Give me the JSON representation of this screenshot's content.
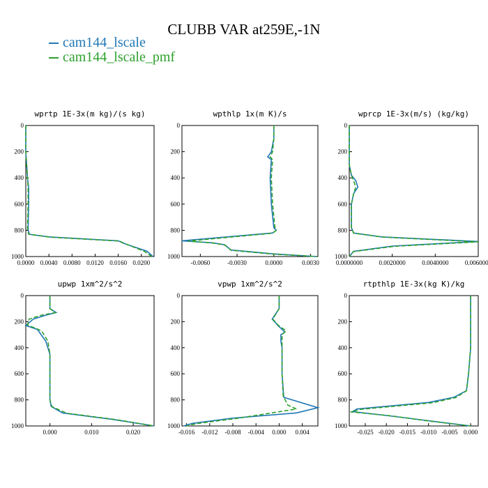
{
  "title": "CLUBB VAR at259E,-1N",
  "legend": [
    {
      "label": "cam144_lscale",
      "color": "#1f77b4"
    },
    {
      "label": "cam144_lscale_pmf",
      "color": "#2ca02c"
    }
  ],
  "chart_data": [
    {
      "type": "line",
      "title": "wprtp  1E-3x(m kg)/(s kg)",
      "xlim": [
        0.0,
        0.0222
      ],
      "xticks": [
        0.0,
        0.004,
        0.008,
        0.012,
        0.016,
        0.02
      ],
      "xticklabels": [
        "0.0000",
        "0.0040",
        "0.0080",
        "0.0120",
        "0.0160",
        "0.0200"
      ],
      "ylim": [
        1000,
        0
      ],
      "yticks": [
        0,
        200,
        400,
        600,
        800,
        1000
      ],
      "series": [
        {
          "name": "cam144_lscale",
          "color": "#1f77b4",
          "x": [
            0,
            0,
            0.0003,
            0.0005,
            0.0005,
            0.0004,
            0.0006,
            0.004,
            0.016,
            0.017,
            0.021,
            0.022
          ],
          "y": [
            0,
            200,
            400,
            480,
            600,
            790,
            830,
            850,
            880,
            900,
            960,
            1000
          ]
        },
        {
          "name": "cam144_lscale_pmf",
          "color": "#2ca02c",
          "x": [
            0,
            0,
            0.0003,
            0.0004,
            0.0004,
            0.0003,
            0.0005,
            0.0042,
            0.0162,
            0.0172,
            0.0205,
            0.0218
          ],
          "y": [
            0,
            200,
            400,
            480,
            600,
            790,
            830,
            852,
            882,
            902,
            960,
            1000
          ]
        }
      ]
    },
    {
      "type": "line",
      "title": "wpthlp  1x(m K)/s",
      "xlim": [
        -0.0075,
        0.0036
      ],
      "xticks": [
        -0.006,
        -0.003,
        0.0,
        0.003
      ],
      "xticklabels": [
        "-0.0060",
        "-0.0030",
        "0.0000",
        "0.0030"
      ],
      "ylim": [
        1000,
        0
      ],
      "yticks": [
        0,
        200,
        400,
        600,
        800,
        1000
      ],
      "series": [
        {
          "name": "cam144_lscale",
          "color": "#1f77b4",
          "x": [
            0,
            0,
            -0.0002,
            -0.0005,
            -0.0002,
            -0.0003,
            -0.0002,
            0.0,
            0.0002,
            -0.0001,
            -0.0075,
            -0.005,
            -0.004,
            -0.0035,
            0.0,
            0.0035
          ],
          "y": [
            0,
            100,
            200,
            240,
            260,
            400,
            600,
            780,
            800,
            820,
            880,
            895,
            910,
            950,
            980,
            1000
          ]
        },
        {
          "name": "cam144_lscale_pmf",
          "color": "#2ca02c",
          "x": [
            0,
            0,
            -0.0001,
            -0.0003,
            -0.0001,
            -0.0002,
            -0.0001,
            0.0001,
            0.0002,
            -0.0001,
            -0.007,
            -0.005,
            -0.004,
            -0.0035,
            0.0,
            0.0035
          ],
          "y": [
            0,
            100,
            200,
            240,
            260,
            400,
            600,
            780,
            800,
            822,
            882,
            897,
            912,
            952,
            982,
            1000
          ]
        }
      ]
    },
    {
      "type": "line",
      "title": "wprcp  1E-3x(m/s) (kg/kg)",
      "xlim": [
        0.0,
        0.006
      ],
      "xticks": [
        0.0,
        0.002,
        0.004,
        0.006
      ],
      "xticklabels": [
        "0.0000000",
        "0.0020000",
        "0.0040000",
        "0.0060000"
      ],
      "ylim": [
        1000,
        0
      ],
      "yticks": [
        0,
        200,
        400,
        600,
        800,
        1000
      ],
      "series": [
        {
          "name": "cam144_lscale",
          "color": "#1f77b4",
          "x": [
            0,
            0,
            0.0001,
            0.0003,
            0.0004,
            0.0002,
            0.0001,
            0.0001,
            0.0002,
            0.0015,
            0.006,
            0.002,
            0.0002,
            0.0
          ],
          "y": [
            0,
            300,
            380,
            420,
            470,
            520,
            600,
            780,
            820,
            850,
            885,
            920,
            960,
            1000
          ]
        },
        {
          "name": "cam144_lscale_pmf",
          "color": "#2ca02c",
          "x": [
            0,
            0,
            0.0001,
            0.0002,
            0.0003,
            0.0002,
            0.0001,
            0.0001,
            0.0002,
            0.0016,
            0.006,
            0.0021,
            0.0002,
            0.0
          ],
          "y": [
            0,
            300,
            380,
            420,
            470,
            520,
            600,
            780,
            822,
            852,
            888,
            922,
            962,
            1000
          ]
        }
      ]
    },
    {
      "type": "line",
      "title": "upwp  1xm^2/s^2",
      "xlim": [
        -0.0058,
        0.025
      ],
      "xticks": [
        0.0,
        0.01,
        0.02
      ],
      "xticklabels": [
        "0.000",
        "0.010",
        "0.020"
      ],
      "ylim": [
        1000,
        0
      ],
      "yticks": [
        0,
        200,
        400,
        600,
        800,
        1000
      ],
      "series": [
        {
          "name": "cam144_lscale",
          "color": "#1f77b4",
          "x": [
            0,
            0,
            0.0015,
            -0.001,
            -0.004,
            -0.0058,
            -0.003,
            -0.001,
            0,
            0,
            0,
            0.0003,
            0.003,
            0.015,
            0.025
          ],
          "y": [
            0,
            100,
            130,
            150,
            180,
            230,
            260,
            350,
            450,
            600,
            800,
            850,
            900,
            950,
            1000
          ]
        },
        {
          "name": "cam144_lscale_pmf",
          "color": "#2ca02c",
          "x": [
            0,
            0,
            0.0013,
            -0.002,
            -0.005,
            -0.0054,
            -0.002,
            -0.0005,
            0,
            0,
            0,
            0.0005,
            0.004,
            0.016,
            0.025
          ],
          "y": [
            0,
            100,
            130,
            150,
            180,
            225,
            270,
            350,
            450,
            600,
            800,
            852,
            902,
            952,
            1000
          ]
        }
      ]
    },
    {
      "type": "line",
      "title": "vpwp  1xm^2/s^2",
      "xlim": [
        -0.0168,
        0.0067
      ],
      "xticks": [
        -0.016,
        -0.012,
        -0.008,
        -0.004,
        0.0,
        0.004
      ],
      "xticklabels": [
        "-0.016",
        "-0.012",
        "-0.008",
        "-0.004",
        "0.000",
        "0.004"
      ],
      "ylim": [
        1000,
        0
      ],
      "yticks": [
        0,
        200,
        400,
        600,
        800,
        1000
      ],
      "series": [
        {
          "name": "cam144_lscale",
          "color": "#1f77b4",
          "x": [
            0,
            0,
            -0.0012,
            -0.0002,
            0.001,
            0.0003,
            0.0003,
            0.0005,
            0.0005,
            0.0008,
            0.0067,
            0.003,
            -0.008,
            -0.015,
            -0.0165
          ],
          "y": [
            0,
            100,
            180,
            230,
            280,
            300,
            350,
            400,
            600,
            780,
            860,
            900,
            940,
            980,
            1000
          ]
        },
        {
          "name": "cam144_lscale_pmf",
          "color": "#2ca02c",
          "x": [
            0,
            0,
            -0.0011,
            -0.0001,
            0.0012,
            0.0005,
            0.0005,
            0.0005,
            0.0005,
            0.0007,
            0.0015,
            0.003,
            -0.007,
            -0.014,
            -0.016
          ],
          "y": [
            0,
            100,
            180,
            230,
            270,
            300,
            350,
            400,
            600,
            770,
            840,
            870,
            940,
            980,
            1000
          ]
        }
      ]
    },
    {
      "type": "line",
      "title": "rtpthlp  1E-3x(kg K)/kg",
      "xlim": [
        -0.0288,
        0.0018
      ],
      "xticks": [
        -0.025,
        -0.02,
        -0.015,
        -0.01,
        -0.005,
        0.0
      ],
      "xticklabels": [
        "-0.025",
        "-0.020",
        "-0.015",
        "-0.010",
        "-0.005",
        "0.000"
      ],
      "ylim": [
        1000,
        0
      ],
      "yticks": [
        0,
        200,
        400,
        600,
        800,
        1000
      ],
      "series": [
        {
          "name": "cam144_lscale",
          "color": "#1f77b4",
          "x": [
            0,
            0,
            0,
            -0.0005,
            -0.001,
            -0.004,
            -0.01,
            -0.027,
            -0.028,
            -0.02,
            -0.01,
            0.0
          ],
          "y": [
            0,
            200,
            400,
            600,
            730,
            780,
            820,
            870,
            890,
            920,
            960,
            1000
          ]
        },
        {
          "name": "cam144_lscale_pmf",
          "color": "#2ca02c",
          "x": [
            0,
            0,
            0,
            -0.0005,
            -0.001,
            -0.0035,
            -0.009,
            -0.026,
            -0.0285,
            -0.019,
            -0.01,
            0.0
          ],
          "y": [
            0,
            200,
            400,
            600,
            730,
            782,
            822,
            872,
            892,
            922,
            962,
            1000
          ]
        }
      ]
    }
  ]
}
